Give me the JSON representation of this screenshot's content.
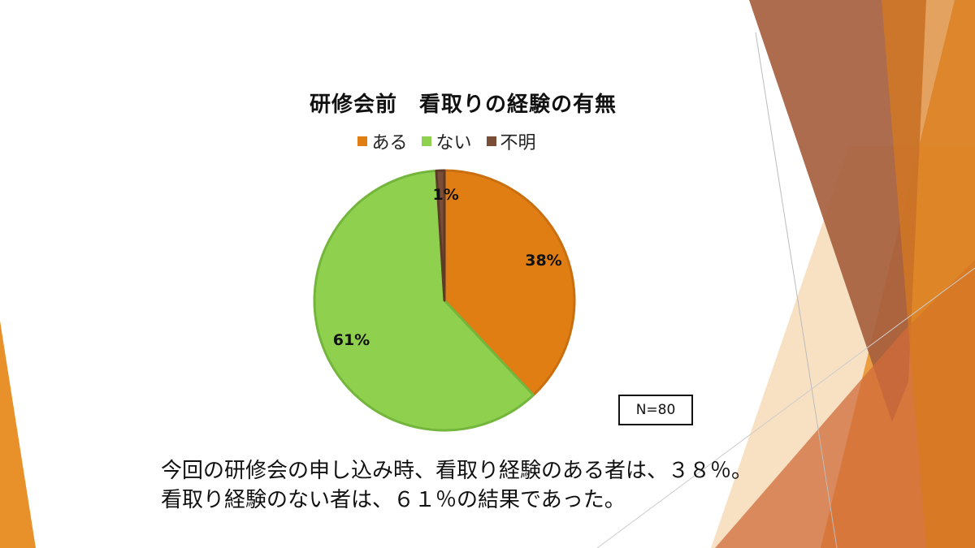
{
  "slide": {
    "sample_note": "N=80",
    "caption_lines": [
      "今回の研修会の申し込み時、看取り経験のある者は、３８％。",
      "看取り経験のない者は、６１％の結果であった。"
    ]
  },
  "chart_data": {
    "type": "pie",
    "title": "研修会前　看取りの経験の有無",
    "categories": [
      "ある",
      "ない",
      "不明"
    ],
    "values": [
      38,
      61,
      1
    ],
    "labels": [
      "38%",
      "61%",
      "1%"
    ],
    "colors": [
      "#E07E14",
      "#8FD14F",
      "#7A4E36"
    ],
    "border_colors": [
      "#C96F10",
      "#74B53C",
      "#5E3A28"
    ],
    "legend_position": "top"
  },
  "theme": {
    "accent_orange": "#E8912A",
    "accent_brown": "#A65F3E"
  }
}
